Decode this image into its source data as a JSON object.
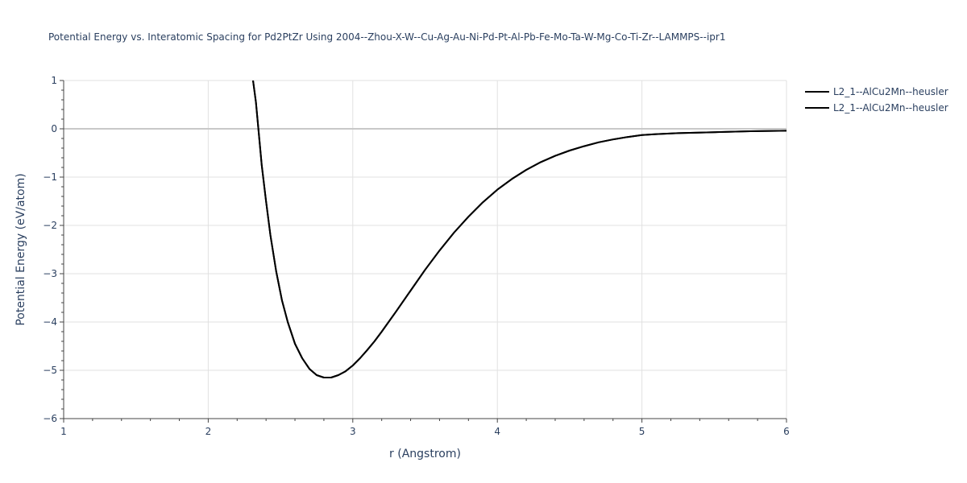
{
  "chart_data": {
    "type": "line",
    "title": "Potential Energy vs. Interatomic Spacing for Pd2PtZr Using 2004--Zhou-X-W--Cu-Ag-Au-Ni-Pd-Pt-Al-Pb-Fe-Mo-Ta-W-Mg-Co-Ti-Zr--LAMMPS--ipr1",
    "xlabel": "r (Angstrom)",
    "ylabel": "Potential Energy (eV/atom)",
    "xlim": [
      1,
      6
    ],
    "ylim": [
      -6,
      1
    ],
    "x_ticks": [
      1,
      2,
      3,
      4,
      5,
      6
    ],
    "y_ticks": [
      1,
      0,
      -1,
      -2,
      -3,
      -4,
      -5,
      -6
    ],
    "x_tick_labels": [
      "1",
      "2",
      "3",
      "4",
      "5",
      "6"
    ],
    "y_tick_labels": [
      "1",
      "0",
      "−1",
      "−2",
      "−3",
      "−4",
      "−5",
      "−6"
    ],
    "grid": true,
    "legend_position": "top-right",
    "series": [
      {
        "name": "L2_1--AlCu2Mn--heusler",
        "color": "#000000",
        "x": [
          2.31,
          2.33,
          2.35,
          2.37,
          2.4,
          2.43,
          2.47,
          2.51,
          2.55,
          2.6,
          2.65,
          2.7,
          2.75,
          2.8,
          2.85,
          2.9,
          2.95,
          3.0,
          3.05,
          3.1,
          3.15,
          3.2,
          3.3,
          3.4,
          3.5,
          3.6,
          3.7,
          3.8,
          3.9,
          4.0,
          4.1,
          4.2,
          4.3,
          4.4,
          4.5,
          4.6,
          4.7,
          4.8,
          4.9,
          5.0,
          5.1,
          5.25,
          5.5,
          5.75,
          6.0
        ],
        "y": [
          1.0,
          0.55,
          -0.1,
          -0.75,
          -1.5,
          -2.2,
          -2.95,
          -3.55,
          -4.0,
          -4.45,
          -4.75,
          -4.97,
          -5.1,
          -5.15,
          -5.15,
          -5.1,
          -5.02,
          -4.9,
          -4.75,
          -4.58,
          -4.4,
          -4.2,
          -3.78,
          -3.35,
          -2.92,
          -2.52,
          -2.15,
          -1.82,
          -1.52,
          -1.26,
          -1.04,
          -0.85,
          -0.69,
          -0.56,
          -0.45,
          -0.36,
          -0.28,
          -0.22,
          -0.17,
          -0.13,
          -0.11,
          -0.09,
          -0.07,
          -0.05,
          -0.04
        ]
      },
      {
        "name": "L2_1--AlCu2Mn--heusler",
        "color": "#000000",
        "x": [
          2.31,
          2.33,
          2.35,
          2.37,
          2.4,
          2.43,
          2.47,
          2.51,
          2.55,
          2.6,
          2.65,
          2.7,
          2.75,
          2.8,
          2.85,
          2.9,
          2.95,
          3.0,
          3.05,
          3.1,
          3.15,
          3.2,
          3.3,
          3.4,
          3.5,
          3.6,
          3.7,
          3.8,
          3.9,
          4.0,
          4.1,
          4.2,
          4.3,
          4.4,
          4.5,
          4.6,
          4.7,
          4.8,
          4.9,
          5.0,
          5.1,
          5.25,
          5.5,
          5.75,
          6.0
        ],
        "y": [
          1.0,
          0.55,
          -0.1,
          -0.75,
          -1.5,
          -2.2,
          -2.95,
          -3.55,
          -4.0,
          -4.45,
          -4.75,
          -4.97,
          -5.1,
          -5.15,
          -5.15,
          -5.1,
          -5.02,
          -4.9,
          -4.75,
          -4.58,
          -4.4,
          -4.2,
          -3.78,
          -3.35,
          -2.92,
          -2.52,
          -2.15,
          -1.82,
          -1.52,
          -1.26,
          -1.04,
          -0.85,
          -0.69,
          -0.56,
          -0.45,
          -0.36,
          -0.28,
          -0.22,
          -0.17,
          -0.13,
          -0.11,
          -0.09,
          -0.07,
          -0.05,
          -0.04
        ]
      }
    ]
  }
}
